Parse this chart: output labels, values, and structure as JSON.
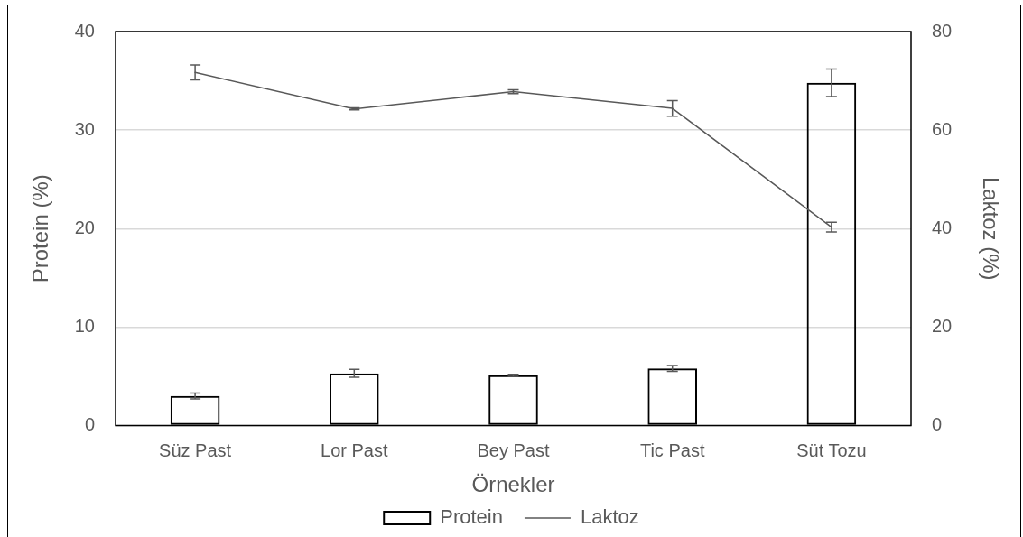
{
  "chart_data": {
    "type": "bar",
    "xlabel": "Örnekler",
    "ylabel": "Protein (%)",
    "y2label": "Laktoz (%)",
    "categories": [
      "Süz Past",
      "Lor Past",
      "Bey Past",
      "Tic Past",
      "Süt Tozu"
    ],
    "series": [
      {
        "name": "Protein",
        "color": "#000000",
        "values": [
          3.0,
          5.3,
          5.1,
          5.8,
          34.8
        ],
        "errors": [
          0.3,
          0.4,
          0.1,
          0.3,
          1.4
        ]
      },
      {
        "name": "Laktoz",
        "type": "line",
        "axis": "y2",
        "color": "#595959",
        "values": [
          71.7,
          64.3,
          67.8,
          64.4,
          40.3
        ],
        "errors": [
          1.5,
          0.2,
          0.4,
          1.6,
          1.0
        ]
      }
    ],
    "ylim": [
      0,
      40
    ],
    "yticks": [
      0,
      10,
      20,
      30,
      40
    ],
    "y2lim": [
      0,
      80
    ],
    "y2ticks": [
      0,
      20,
      40,
      60,
      80
    ],
    "grid": "y",
    "legend": "bottom"
  }
}
